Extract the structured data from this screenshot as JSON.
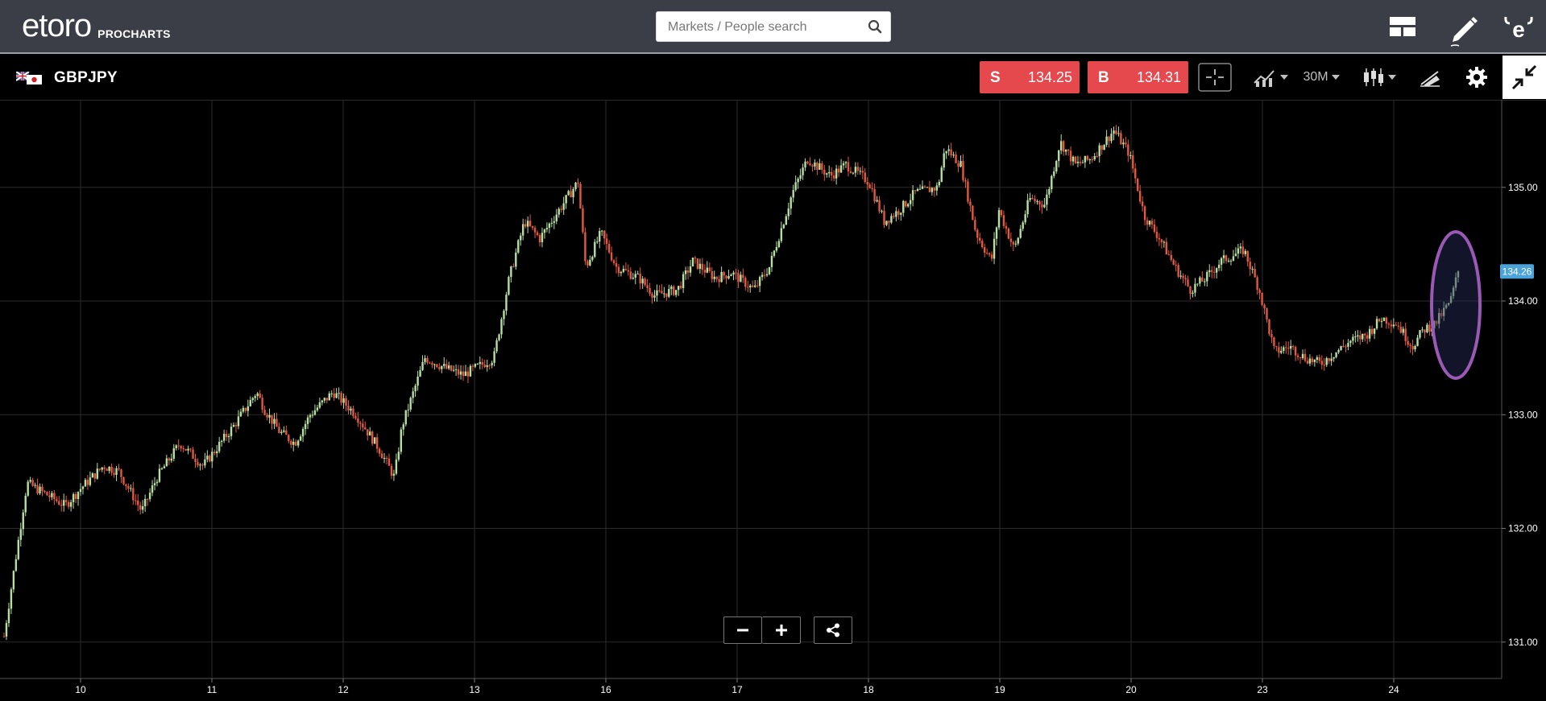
{
  "header": {
    "logo_text": "etoro",
    "logo_sub": "PROCHARTS",
    "search_placeholder": "Markets / People search",
    "icons": [
      "layout-icon",
      "edit-pencil-icon",
      "etoro-avatar-icon"
    ]
  },
  "instrument": {
    "symbol": "GBPJPY",
    "sell_label": "S",
    "sell_price": "134.25",
    "buy_label": "B",
    "buy_price": "134.31",
    "timeframe": "30M",
    "tools": [
      "crosshair-icon",
      "indicators-icon",
      "timeframe-select",
      "candlestick-icon",
      "drawing-icon",
      "settings-gear-icon",
      "collapse-icon"
    ]
  },
  "colors": {
    "up": "#b6dfa2",
    "down": "#e4583e",
    "sell": "#e5484d",
    "buy": "#e5484d",
    "price_tag": "#4ba3d9",
    "highlight": "#9b59b6"
  },
  "chart_data": {
    "type": "candlestick",
    "x_tick_labels": [
      "10",
      "11",
      "12",
      "13",
      "16",
      "17",
      "18",
      "19",
      "20",
      "23",
      "24"
    ],
    "y_tick_labels": [
      "135.00",
      "134.00",
      "133.00",
      "132.00",
      "131.00"
    ],
    "y_ticks": [
      135.0,
      134.0,
      133.0,
      132.0,
      131.0
    ],
    "ylim": [
      130.68,
      135.77
    ],
    "current_price": 134.26,
    "current_price_label": "134.26",
    "grid": true,
    "close_path": [
      [
        0,
        131.05
      ],
      [
        0.3,
        132.4
      ],
      [
        0.8,
        132.2
      ],
      [
        1.0,
        132.35
      ],
      [
        1.3,
        132.55
      ],
      [
        1.5,
        132.5
      ],
      [
        1.8,
        132.15
      ],
      [
        2.0,
        132.45
      ],
      [
        2.3,
        132.75
      ],
      [
        2.6,
        132.55
      ],
      [
        3.0,
        132.9
      ],
      [
        3.3,
        133.2
      ],
      [
        3.4,
        133.05
      ],
      [
        3.6,
        132.85
      ],
      [
        3.8,
        132.75
      ],
      [
        4.0,
        133.0
      ],
      [
        4.3,
        133.2
      ],
      [
        4.6,
        133.0
      ],
      [
        4.9,
        132.7
      ],
      [
        5.1,
        132.45
      ],
      [
        5.2,
        132.9
      ],
      [
        5.5,
        133.5
      ],
      [
        5.8,
        133.4
      ],
      [
        6.0,
        133.35
      ],
      [
        6.4,
        133.5
      ],
      [
        6.6,
        134.2
      ],
      [
        6.8,
        134.7
      ],
      [
        7.0,
        134.55
      ],
      [
        7.3,
        134.85
      ],
      [
        7.5,
        135.05
      ],
      [
        7.6,
        134.3
      ],
      [
        7.8,
        134.6
      ],
      [
        8.0,
        134.3
      ],
      [
        8.3,
        134.2
      ],
      [
        8.5,
        134.05
      ],
      [
        8.8,
        134.1
      ],
      [
        9.0,
        134.35
      ],
      [
        9.3,
        134.2
      ],
      [
        9.5,
        134.25
      ],
      [
        9.8,
        134.1
      ],
      [
        10.0,
        134.3
      ],
      [
        10.3,
        134.95
      ],
      [
        10.5,
        135.25
      ],
      [
        10.8,
        135.1
      ],
      [
        11.0,
        135.2
      ],
      [
        11.3,
        135.05
      ],
      [
        11.5,
        134.7
      ],
      [
        11.7,
        134.8
      ],
      [
        11.9,
        134.95
      ],
      [
        12.2,
        135.0
      ],
      [
        12.3,
        135.35
      ],
      [
        12.5,
        135.2
      ],
      [
        12.7,
        134.6
      ],
      [
        12.9,
        134.35
      ],
      [
        13.0,
        134.8
      ],
      [
        13.2,
        134.45
      ],
      [
        13.4,
        134.9
      ],
      [
        13.6,
        134.85
      ],
      [
        13.8,
        135.4
      ],
      [
        14.0,
        135.2
      ],
      [
        14.2,
        135.25
      ],
      [
        14.5,
        135.5
      ],
      [
        14.7,
        135.3
      ],
      [
        14.9,
        134.75
      ],
      [
        15.1,
        134.55
      ],
      [
        15.3,
        134.3
      ],
      [
        15.5,
        134.1
      ],
      [
        15.7,
        134.2
      ],
      [
        15.9,
        134.35
      ],
      [
        16.2,
        134.45
      ],
      [
        16.4,
        134.1
      ],
      [
        16.6,
        133.55
      ],
      [
        16.8,
        133.6
      ],
      [
        17.0,
        133.5
      ],
      [
        17.2,
        133.45
      ],
      [
        17.4,
        133.55
      ],
      [
        17.6,
        133.65
      ],
      [
        17.8,
        133.7
      ],
      [
        18.0,
        133.85
      ],
      [
        18.2,
        133.8
      ],
      [
        18.4,
        133.6
      ],
      [
        18.55,
        133.75
      ],
      [
        18.7,
        133.8
      ],
      [
        18.9,
        134.0
      ],
      [
        19.0,
        134.26
      ]
    ]
  }
}
